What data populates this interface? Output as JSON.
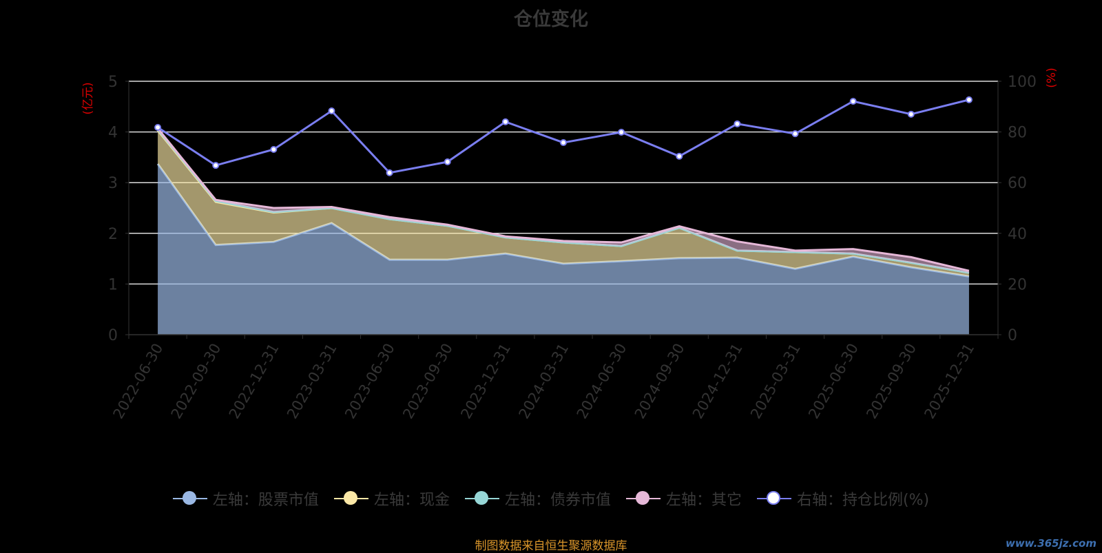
{
  "chart_data": {
    "type": "area",
    "title": "仓位变化",
    "ylabel_left": "(亿元)",
    "ylabel_right": "(%)",
    "ylim_left": [
      0,
      5
    ],
    "ylim_right": [
      0,
      100
    ],
    "yticks_left": [
      "0",
      "1",
      "2",
      "3",
      "4",
      "5"
    ],
    "yticks_right": [
      "0",
      "20",
      "40",
      "60",
      "80",
      "100"
    ],
    "grid": true,
    "stacked": true,
    "legend_position": "bottom",
    "categories": [
      "2022-06-30",
      "2022-09-30",
      "2022-12-31",
      "2023-03-31",
      "2023-06-30",
      "2023-09-30",
      "2023-12-31",
      "2024-03-31",
      "2024-06-30",
      "2024-09-30",
      "2024-12-31",
      "2025-03-31",
      "2025-06-30",
      "2025-09-30",
      "2025-12-31"
    ],
    "series": [
      {
        "name": "左轴：股票市值",
        "axis": "left",
        "type": "area",
        "color": "#9ab8e4",
        "values": [
          3.37,
          1.77,
          1.83,
          2.2,
          1.48,
          1.48,
          1.6,
          1.4,
          1.45,
          1.51,
          1.52,
          1.3,
          1.54,
          1.33,
          1.15
        ]
      },
      {
        "name": "左轴：现金",
        "axis": "left",
        "type": "area",
        "color": "#fbe8a6",
        "values": [
          0.66,
          0.85,
          0.58,
          0.3,
          0.8,
          0.67,
          0.32,
          0.42,
          0.3,
          0.6,
          0.14,
          0.33,
          0.06,
          0.09,
          0.07
        ]
      },
      {
        "name": "左轴：债券市值",
        "axis": "left",
        "type": "area",
        "color": "#96d6d6",
        "values": [
          0.02,
          0.02,
          0.01,
          0,
          0,
          0,
          0,
          0,
          0,
          0,
          0,
          0,
          0,
          0,
          0
        ]
      },
      {
        "name": "左轴：其它",
        "axis": "left",
        "type": "area",
        "color": "#e6b8d8",
        "values": [
          0.02,
          0.02,
          0.08,
          0.02,
          0.04,
          0.02,
          0.02,
          0.03,
          0.07,
          0.03,
          0.18,
          0.03,
          0.09,
          0.11,
          0.04
        ]
      },
      {
        "name": "右轴：持仓比例(%)",
        "axis": "right",
        "type": "line",
        "color": "#7a7ef0",
        "values": [
          81.8,
          66.8,
          73.1,
          88.3,
          63.9,
          68.2,
          84.0,
          75.8,
          79.9,
          70.4,
          83.2,
          79.3,
          92.1,
          87.0,
          92.7
        ]
      }
    ]
  },
  "source_note": "制图数据来自恒生聚源数据库",
  "watermark": "www.365jz.com"
}
